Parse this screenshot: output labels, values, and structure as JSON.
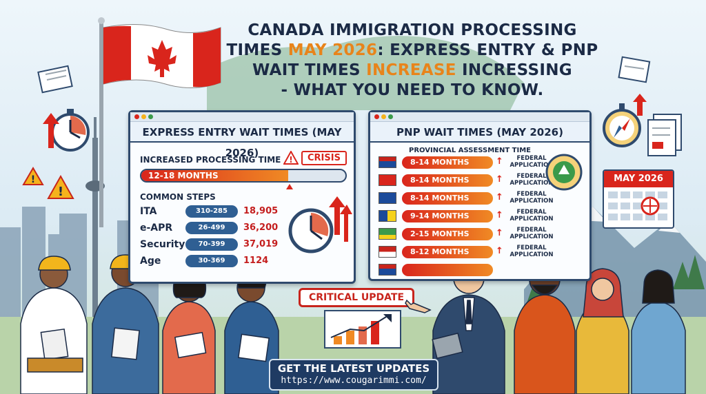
{
  "headline": {
    "line1": "CANADA IMMIGRATION PROCESSING",
    "line2_pre": "TIMES ",
    "line2_hl": "MAY 2026",
    "line2_post": ": EXPRESS ENTRY & PNP",
    "line3_pre": "WAIT TIMES ",
    "line3_hl": "INCREASE",
    "line3_post": " INCRESSING",
    "line4": "- WHAT YOU NEED TO KNOW."
  },
  "express_entry": {
    "title": "EXPRESS ENTRY WAIT TIMES (MAY 2026)",
    "increased_label": "INCREASED PROCESSING TIME",
    "crisis_badge": "CRISIS",
    "progress_text": "12-18 MONTHS",
    "progress_level": 0.72,
    "steps_label": "COMMON STEPS",
    "steps": [
      {
        "name": "ITA",
        "range": "310-285",
        "value": "18,905"
      },
      {
        "name": "e-APR",
        "range": "26-499",
        "value": "36,200"
      },
      {
        "name": "Security",
        "range": "70-399",
        "value": "37,019"
      },
      {
        "name": "Age",
        "range": "30-369",
        "value": "1124"
      }
    ]
  },
  "pnp": {
    "title": "PNP WAIT TIMES (MAY 2026)",
    "assessment_label": "PROVINCIAL ASSESSMENT TIME",
    "rows": [
      {
        "months": "8-14 MONTHS",
        "federal_l1": "FEDERAL",
        "federal_l2": "APPLICATION"
      },
      {
        "months": "8-14 MONTHS",
        "federal_l1": "FEDERAL",
        "federal_l2": "APPLICATION"
      },
      {
        "months": "8-14 MONTHS",
        "federal_l1": "FEDERAL",
        "federal_l2": "APPLICATION"
      },
      {
        "months": "9-14 MONTHS",
        "federal_l1": "FEDERAL",
        "federal_l2": "APPLICATION"
      },
      {
        "months": "2-15 MONTHS",
        "federal_l1": "FEDERAL",
        "federal_l2": "APPLICATION"
      },
      {
        "months": "8-12 MONTHS",
        "federal_l1": "FEDERAL",
        "federal_l2": "APPLICATION"
      },
      {
        "months": "",
        "federal_l1": "",
        "federal_l2": ""
      }
    ]
  },
  "critical_update": "CRITICAL UPDATE",
  "calendar_label": "MAY 2026",
  "cta": {
    "title": "GET THE LATEST UPDATES",
    "url": "https://www.cougarimmi.com/"
  },
  "colors": {
    "navy": "#1b2a45",
    "accent_orange": "#e8841b",
    "alert_red": "#d9251c",
    "panel_border": "#2f4a6d"
  },
  "icons": [
    "canada-flag-icon",
    "stopwatch-icon",
    "warning-icon",
    "compass-icon",
    "documents-icon",
    "calendar-icon",
    "handshake-icon",
    "clock-icon",
    "growth-chart-icon",
    "cn-tower-icon"
  ]
}
